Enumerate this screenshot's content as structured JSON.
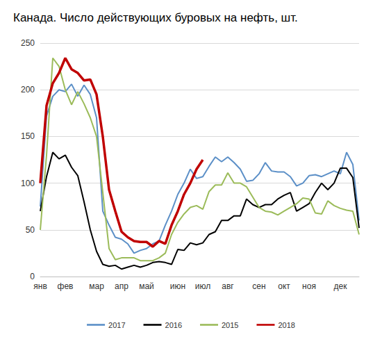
{
  "chart_data": {
    "type": "line",
    "title": "Канада. Число действующих буровых на нефть, шт.",
    "categories": [
      "янв",
      null,
      null,
      null,
      "фев",
      null,
      null,
      null,
      null,
      "мар",
      null,
      null,
      null,
      "апр",
      null,
      null,
      null,
      "май",
      null,
      null,
      null,
      null,
      "июн",
      null,
      null,
      null,
      "июл",
      null,
      null,
      null,
      "авг",
      null,
      null,
      null,
      null,
      "сен",
      null,
      null,
      null,
      "окт",
      null,
      null,
      null,
      "ноя",
      null,
      null,
      null,
      null,
      "дек",
      null,
      null,
      null
    ],
    "series": [
      {
        "name": "2017",
        "color": "#5b8fc7",
        "values": [
          75,
          172,
          193,
          200,
          198,
          206,
          193,
          205,
          195,
          170,
          70,
          55,
          42,
          40,
          35,
          25,
          28,
          30,
          35,
          38,
          55,
          70,
          88,
          100,
          115,
          105,
          107,
          118,
          128,
          123,
          128,
          122,
          115,
          102,
          103,
          110,
          122,
          113,
          112,
          112,
          107,
          97,
          100,
          108,
          109,
          107,
          110,
          113,
          110,
          133,
          120,
          60
        ]
      },
      {
        "name": "2016",
        "color": "#000000",
        "values": [
          70,
          107,
          133,
          126,
          130,
          117,
          108,
          80,
          50,
          27,
          13,
          11,
          12,
          8,
          10,
          12,
          10,
          12,
          15,
          16,
          15,
          13,
          29,
          28,
          36,
          34,
          36,
          45,
          48,
          60,
          60,
          65,
          65,
          83,
          77,
          74,
          77,
          77,
          83,
          87,
          90,
          70,
          74,
          78,
          90,
          100,
          93,
          100,
          116,
          116,
          106,
          52
        ]
      },
      {
        "name": "2015",
        "color": "#9bbb59",
        "values": [
          50,
          130,
          234,
          225,
          200,
          184,
          198,
          185,
          170,
          150,
          90,
          30,
          18,
          20,
          20,
          20,
          17,
          17,
          17,
          20,
          25,
          45,
          58,
          67,
          74,
          76,
          72,
          91,
          98,
          98,
          111,
          100,
          100,
          96,
          85,
          74,
          70,
          69,
          66,
          70,
          74,
          78,
          84,
          83,
          68,
          67,
          81,
          76,
          73,
          71,
          70,
          45
        ]
      },
      {
        "name": "2018",
        "color": "#c00000",
        "values": [
          100,
          183,
          207,
          218,
          234,
          222,
          218,
          210,
          211,
          195,
          150,
          93,
          70,
          48,
          42,
          38,
          37,
          37,
          32,
          38,
          35,
          55,
          70,
          88,
          100,
          115,
          125,
          null,
          null,
          null,
          null,
          null,
          null,
          null,
          null,
          null,
          null,
          null,
          null,
          null,
          null,
          null,
          null,
          null,
          null,
          null,
          null,
          null,
          null,
          null,
          null,
          null
        ]
      }
    ],
    "ylim": [
      0,
      250
    ],
    "yticks": [
      0,
      50,
      100,
      150,
      200,
      250
    ],
    "grid": true,
    "legend": "bottom"
  }
}
